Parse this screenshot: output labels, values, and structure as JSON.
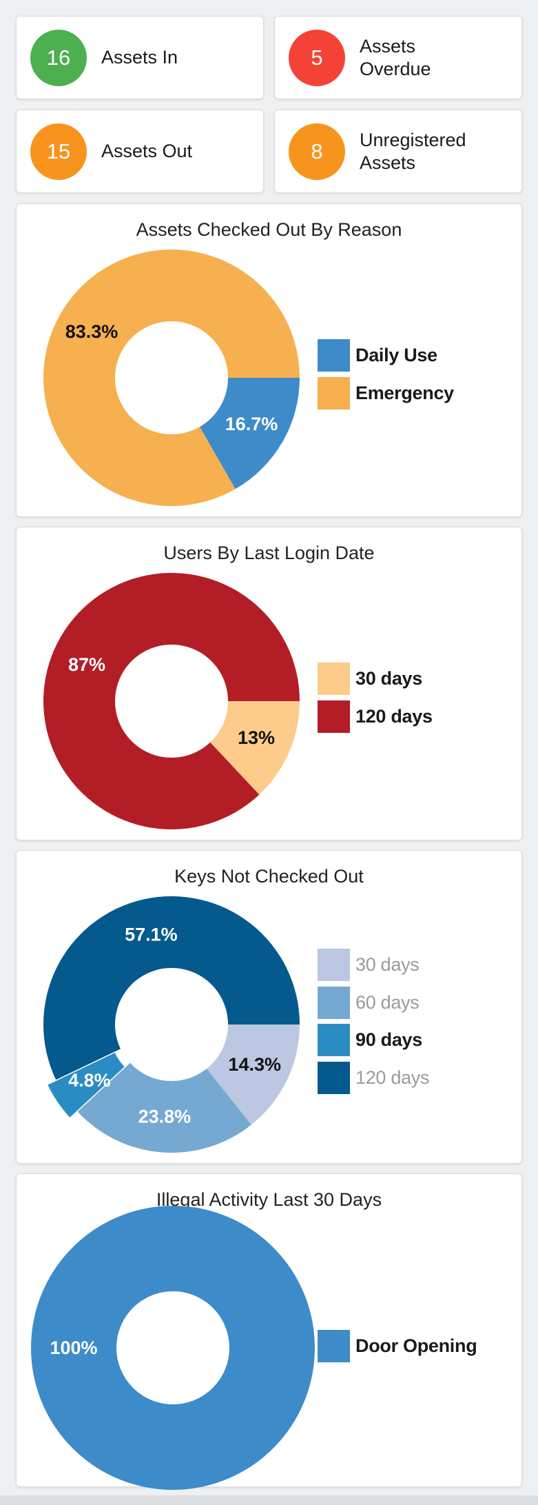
{
  "stats": [
    {
      "count": "16",
      "label": "Assets In",
      "color": "#4caf50"
    },
    {
      "count": "5",
      "label": "Assets Overdue",
      "color": "#f44336"
    },
    {
      "count": "15",
      "label": "Assets Out",
      "color": "#f7941d"
    },
    {
      "count": "8",
      "label": "Unregistered Assets",
      "color": "#f7941d"
    }
  ],
  "chart_data": [
    {
      "type": "pie",
      "title": "Assets Checked Out By Reason",
      "categories": [
        "Daily Use",
        "Emergency"
      ],
      "values": [
        16.7,
        83.3
      ],
      "data_labels": [
        "16.7%",
        "83.3%"
      ],
      "colors": [
        "#3d8bc9",
        "#f6b04f"
      ],
      "label_colors": [
        "#ffffff",
        "#111111"
      ],
      "legend_dimmed": [
        false,
        false
      ],
      "legend": "right"
    },
    {
      "type": "pie",
      "title": "Users By Last Login Date",
      "categories": [
        "30 days",
        "120 days"
      ],
      "values": [
        13,
        87
      ],
      "data_labels": [
        "13%",
        "87%"
      ],
      "colors": [
        "#fdcc8a",
        "#b31e26"
      ],
      "label_colors": [
        "#111111",
        "#ffffff"
      ],
      "legend_dimmed": [
        false,
        false
      ],
      "legend": "right"
    },
    {
      "type": "pie",
      "title": "Keys Not Checked Out",
      "categories": [
        "30 days",
        "60 days",
        "90 days",
        "120 days"
      ],
      "values": [
        14.3,
        23.8,
        4.8,
        57.1
      ],
      "data_labels": [
        "14.3%",
        "23.8%",
        "4.8%",
        "57.1%"
      ],
      "colors": [
        "#bcc8e1",
        "#76a9d1",
        "#2b8cc4",
        "#045a8d"
      ],
      "label_colors": [
        "#111111",
        "#ffffff",
        "#ffffff",
        "#ffffff"
      ],
      "legend_dimmed": [
        true,
        true,
        false,
        true
      ],
      "highlighted": 2,
      "legend": "right"
    },
    {
      "type": "pie",
      "title": "Illegal Activity Last 30 Days",
      "categories": [
        "Door Opening"
      ],
      "values": [
        100
      ],
      "data_labels": [
        "100%"
      ],
      "colors": [
        "#3d8bc9"
      ],
      "label_colors": [
        "#ffffff"
      ],
      "legend_dimmed": [
        false
      ],
      "legend": "right"
    }
  ]
}
